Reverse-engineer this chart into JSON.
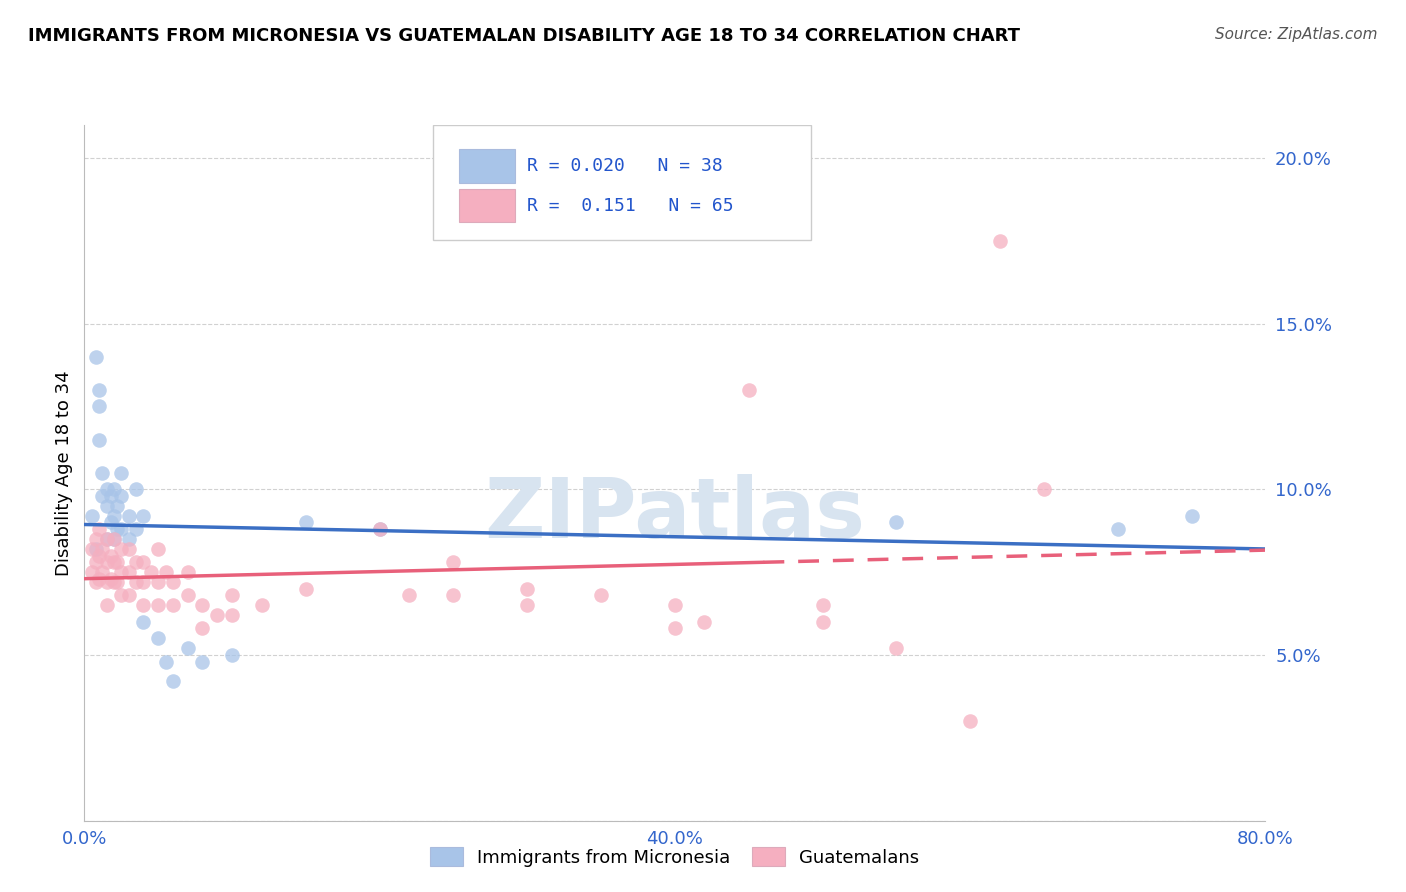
{
  "title": "IMMIGRANTS FROM MICRONESIA VS GUATEMALAN DISABILITY AGE 18 TO 34 CORRELATION CHART",
  "source": "Source: ZipAtlas.com",
  "ylabel_label": "Disability Age 18 to 34",
  "xlim": [
    0.0,
    0.8
  ],
  "ylim": [
    0.0,
    0.21
  ],
  "xticks": [
    0.0,
    0.2,
    0.4,
    0.6,
    0.8
  ],
  "xticklabels": [
    "0.0%",
    "",
    "40.0%",
    "",
    "80.0%"
  ],
  "yticks": [
    0.0,
    0.05,
    0.1,
    0.15,
    0.2
  ],
  "yticklabels_right": [
    "",
    "5.0%",
    "10.0%",
    "15.0%",
    "20.0%"
  ],
  "legend_line1": "R = 0.020   N = 38",
  "legend_line2": "R =  0.151   N = 65",
  "blue_color": "#a8c4e8",
  "pink_color": "#f5afc0",
  "blue_line_color": "#3b6fc4",
  "pink_line_color": "#e8607a",
  "legend_text_color": "#2255cc",
  "tick_color": "#3366cc",
  "watermark_color": "#d8e4f0",
  "blue_points": [
    [
      0.005,
      0.092
    ],
    [
      0.008,
      0.082
    ],
    [
      0.008,
      0.14
    ],
    [
      0.01,
      0.13
    ],
    [
      0.01,
      0.125
    ],
    [
      0.01,
      0.115
    ],
    [
      0.012,
      0.105
    ],
    [
      0.012,
      0.098
    ],
    [
      0.015,
      0.1
    ],
    [
      0.015,
      0.095
    ],
    [
      0.015,
      0.085
    ],
    [
      0.018,
      0.098
    ],
    [
      0.018,
      0.09
    ],
    [
      0.02,
      0.1
    ],
    [
      0.02,
      0.092
    ],
    [
      0.02,
      0.085
    ],
    [
      0.022,
      0.095
    ],
    [
      0.022,
      0.088
    ],
    [
      0.025,
      0.105
    ],
    [
      0.025,
      0.098
    ],
    [
      0.025,
      0.088
    ],
    [
      0.03,
      0.092
    ],
    [
      0.03,
      0.085
    ],
    [
      0.035,
      0.1
    ],
    [
      0.035,
      0.088
    ],
    [
      0.04,
      0.092
    ],
    [
      0.04,
      0.06
    ],
    [
      0.05,
      0.055
    ],
    [
      0.055,
      0.048
    ],
    [
      0.06,
      0.042
    ],
    [
      0.07,
      0.052
    ],
    [
      0.08,
      0.048
    ],
    [
      0.1,
      0.05
    ],
    [
      0.15,
      0.09
    ],
    [
      0.2,
      0.088
    ],
    [
      0.55,
      0.09
    ],
    [
      0.7,
      0.088
    ],
    [
      0.75,
      0.092
    ]
  ],
  "pink_points": [
    [
      0.005,
      0.082
    ],
    [
      0.005,
      0.075
    ],
    [
      0.008,
      0.085
    ],
    [
      0.008,
      0.078
    ],
    [
      0.008,
      0.072
    ],
    [
      0.01,
      0.088
    ],
    [
      0.01,
      0.08
    ],
    [
      0.01,
      0.073
    ],
    [
      0.012,
      0.082
    ],
    [
      0.012,
      0.075
    ],
    [
      0.015,
      0.085
    ],
    [
      0.015,
      0.078
    ],
    [
      0.015,
      0.072
    ],
    [
      0.015,
      0.065
    ],
    [
      0.018,
      0.08
    ],
    [
      0.018,
      0.073
    ],
    [
      0.02,
      0.085
    ],
    [
      0.02,
      0.078
    ],
    [
      0.02,
      0.072
    ],
    [
      0.022,
      0.078
    ],
    [
      0.022,
      0.072
    ],
    [
      0.025,
      0.082
    ],
    [
      0.025,
      0.075
    ],
    [
      0.025,
      0.068
    ],
    [
      0.03,
      0.082
    ],
    [
      0.03,
      0.075
    ],
    [
      0.03,
      0.068
    ],
    [
      0.035,
      0.078
    ],
    [
      0.035,
      0.072
    ],
    [
      0.04,
      0.078
    ],
    [
      0.04,
      0.072
    ],
    [
      0.04,
      0.065
    ],
    [
      0.045,
      0.075
    ],
    [
      0.05,
      0.082
    ],
    [
      0.05,
      0.072
    ],
    [
      0.05,
      0.065
    ],
    [
      0.055,
      0.075
    ],
    [
      0.06,
      0.072
    ],
    [
      0.06,
      0.065
    ],
    [
      0.07,
      0.075
    ],
    [
      0.07,
      0.068
    ],
    [
      0.08,
      0.065
    ],
    [
      0.08,
      0.058
    ],
    [
      0.09,
      0.062
    ],
    [
      0.1,
      0.068
    ],
    [
      0.1,
      0.062
    ],
    [
      0.12,
      0.065
    ],
    [
      0.15,
      0.07
    ],
    [
      0.2,
      0.088
    ],
    [
      0.22,
      0.068
    ],
    [
      0.25,
      0.078
    ],
    [
      0.25,
      0.068
    ],
    [
      0.3,
      0.07
    ],
    [
      0.3,
      0.065
    ],
    [
      0.35,
      0.068
    ],
    [
      0.4,
      0.058
    ],
    [
      0.4,
      0.065
    ],
    [
      0.42,
      0.06
    ],
    [
      0.45,
      0.13
    ],
    [
      0.5,
      0.065
    ],
    [
      0.5,
      0.06
    ],
    [
      0.55,
      0.052
    ],
    [
      0.6,
      0.03
    ],
    [
      0.62,
      0.175
    ],
    [
      0.65,
      0.1
    ]
  ],
  "blue_line_x": [
    0.0,
    0.8
  ],
  "blue_line_y_start": 0.0855,
  "blue_line_y_end": 0.0905,
  "pink_line_x": [
    0.0,
    0.8
  ],
  "pink_line_y_start": 0.068,
  "pink_line_y_end": 0.09
}
